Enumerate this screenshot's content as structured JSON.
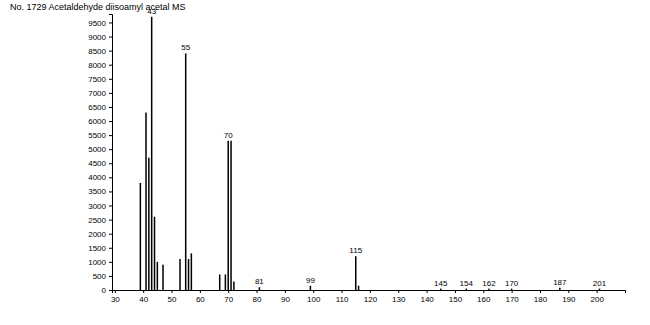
{
  "chart_data": {
    "type": "bar",
    "title": "No. 1729 Acetaldehyde diisoamyl acetal MS",
    "x": [
      39,
      41,
      42,
      43,
      44,
      45,
      47,
      53,
      55,
      56,
      57,
      67,
      69,
      70,
      71,
      72,
      81,
      99,
      115,
      116,
      145,
      154,
      162,
      170,
      187,
      201
    ],
    "values": [
      3800,
      6300,
      4700,
      9700,
      2600,
      1000,
      900,
      1100,
      8400,
      1100,
      1300,
      550,
      550,
      5300,
      5300,
      300,
      100,
      150,
      1200,
      150,
      50,
      50,
      50,
      50,
      80,
      50
    ],
    "color": "#000000",
    "xlim": [
      29,
      210
    ],
    "ylim": [
      0,
      9800
    ],
    "xticks": [
      30,
      40,
      50,
      60,
      70,
      80,
      90,
      100,
      110,
      120,
      130,
      140,
      150,
      160,
      170,
      180,
      190,
      200
    ],
    "yticks": [
      0,
      500,
      1000,
      1500,
      2000,
      2500,
      3000,
      3500,
      4000,
      4500,
      5000,
      5500,
      6000,
      6500,
      7000,
      7500,
      8000,
      8500,
      9000,
      9500
    ],
    "annotations": [
      {
        "x": 43,
        "text": "43"
      },
      {
        "x": 55,
        "text": "55"
      },
      {
        "x": 70,
        "text": "70"
      },
      {
        "x": 81,
        "text": "81"
      },
      {
        "x": 99,
        "text": "99"
      },
      {
        "x": 115,
        "text": "115"
      },
      {
        "x": 145,
        "text": "145"
      },
      {
        "x": 154,
        "text": "154"
      },
      {
        "x": 162,
        "text": "162"
      },
      {
        "x": 170,
        "text": "170"
      },
      {
        "x": 187,
        "text": "187"
      },
      {
        "x": 201,
        "text": "201"
      }
    ],
    "grid": false
  }
}
